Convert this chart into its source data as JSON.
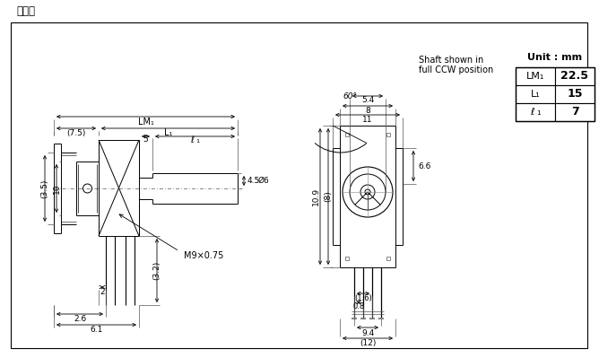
{
  "title": "外形图",
  "bg_color": "#ffffff",
  "lc": "#000000",
  "dc": "#000000",
  "unit_text": "Unit : mm",
  "table_data": [
    [
      "LM₁",
      "22.5"
    ],
    [
      "L₁",
      "15"
    ],
    [
      "ℓ ₁",
      "7"
    ]
  ],
  "note_line1": "Shaft shown in",
  "note_line2": "full CCW position",
  "angle_text": "60°",
  "thread_text": "M9×0.75",
  "lm1_label": "LM₁",
  "l1_label": "L₁",
  "l1_small_label": "ℓ ₁",
  "dim_75": "(7.5)",
  "dim_5": "5",
  "dim_35": "(3.5)",
  "dim_10": "10",
  "dim_2": "2",
  "dim_26": "2.6",
  "dim_61": "6.1",
  "dim_32": "(3.2)",
  "dim_45": "4.5",
  "dim_phi6": "Ø6",
  "dim_11": "11",
  "dim_8": "8",
  "dim_54": "5.4",
  "dim_66": "6.6",
  "dim_109": "10.9",
  "dim_8b": "(8)",
  "dim_08": "0.8",
  "dim_16": "(1.6)",
  "dim_94": "9.4",
  "dim_12": "(12)"
}
